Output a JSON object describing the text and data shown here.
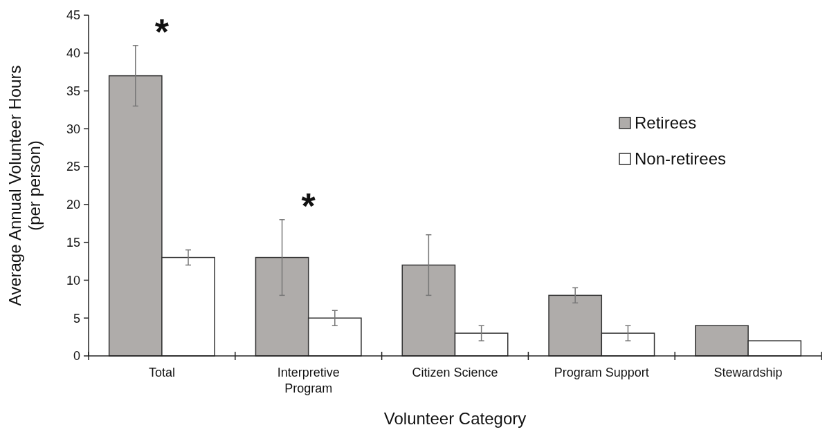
{
  "chart_data": {
    "type": "bar",
    "xlabel": "Volunteer Category",
    "ylabel": "Average Annual Volunteer Hours (per person)",
    "categories": [
      "Total",
      "Interpretive Program",
      "Citizen Science",
      "Program Support",
      "Stewardship"
    ],
    "series": [
      {
        "name": "Retirees",
        "color": "#afacaa",
        "values": [
          37,
          13,
          12,
          8,
          4
        ],
        "errors": [
          4,
          5,
          4,
          1,
          null
        ]
      },
      {
        "name": "Non-retirees",
        "color": "#ffffff",
        "values": [
          13,
          5,
          3,
          3,
          2
        ],
        "errors": [
          1,
          1,
          1,
          1,
          null
        ]
      }
    ],
    "ylim": [
      0,
      45
    ],
    "yticks": [
      0,
      5,
      10,
      15,
      20,
      25,
      30,
      35,
      40,
      45
    ],
    "grid": false,
    "legend": "top right",
    "annotations": [
      "*",
      "*"
    ]
  }
}
